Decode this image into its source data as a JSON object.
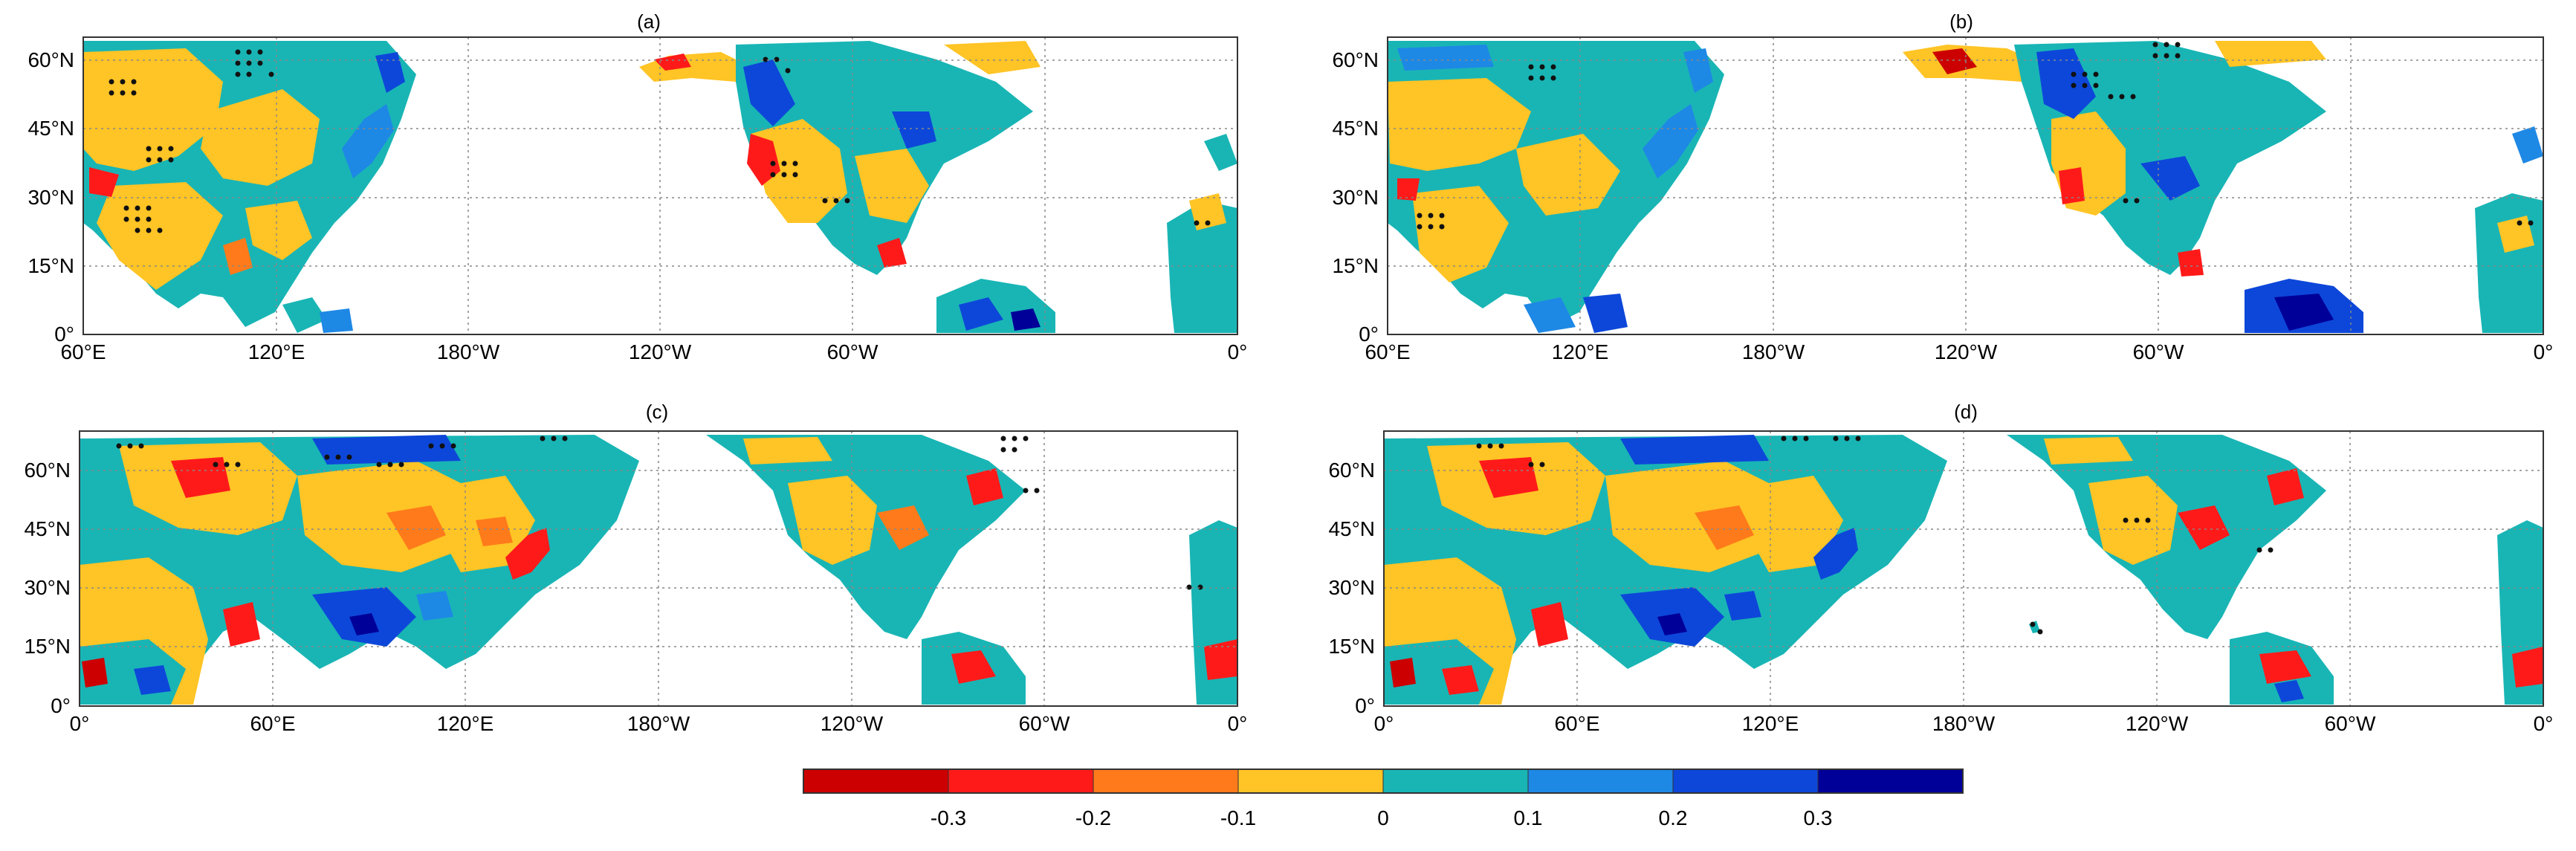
{
  "panels": [
    {
      "label": "(a)",
      "y_ticks": [
        "0°",
        "15°N",
        "30°N",
        "45°N",
        "60°N"
      ],
      "x_ticks": [
        "60°E",
        "120°E",
        "180°W",
        "120°W",
        "60°W",
        "0°"
      ]
    },
    {
      "label": "(b)",
      "y_ticks": [
        "0°",
        "15°N",
        "30°N",
        "45°N",
        "60°N"
      ],
      "x_ticks": [
        "60°E",
        "120°E",
        "180°W",
        "120°W",
        "60°W",
        "0°"
      ]
    },
    {
      "label": "(c)",
      "y_ticks": [
        "0°",
        "15°N",
        "30°N",
        "45°N",
        "60°N"
      ],
      "x_ticks": [
        "0°",
        "60°E",
        "120°E",
        "180°W",
        "120°W",
        "60°W",
        "0°"
      ]
    },
    {
      "label": "(d)",
      "y_ticks": [
        "0°",
        "15°N",
        "30°N",
        "45°N",
        "60°N"
      ],
      "x_ticks": [
        "0°",
        "60°E",
        "120°E",
        "180°W",
        "120°W",
        "60°W",
        "0°"
      ]
    }
  ],
  "colorbar": {
    "colors": [
      "#cc0000",
      "#ff1a1a",
      "#ff7a1a",
      "#ffc425",
      "#19b5b5",
      "#1e88e5",
      "#0d47d9",
      "#000099"
    ],
    "tick_labels": [
      "-0.3",
      "-0.2",
      "-0.1",
      "0",
      "0.1",
      "0.2",
      "0.3"
    ]
  },
  "land_colors": {
    "neutral_negative": "#ffc425",
    "neutral_positive": "#19b5b5",
    "weak_positive": "#1e88e5",
    "moderate_positive": "#0d47d9",
    "strong_positive": "#000099",
    "weak_negative": "#ff7a1a",
    "moderate_negative": "#ff1a1a",
    "strong_negative": "#cc0000"
  }
}
